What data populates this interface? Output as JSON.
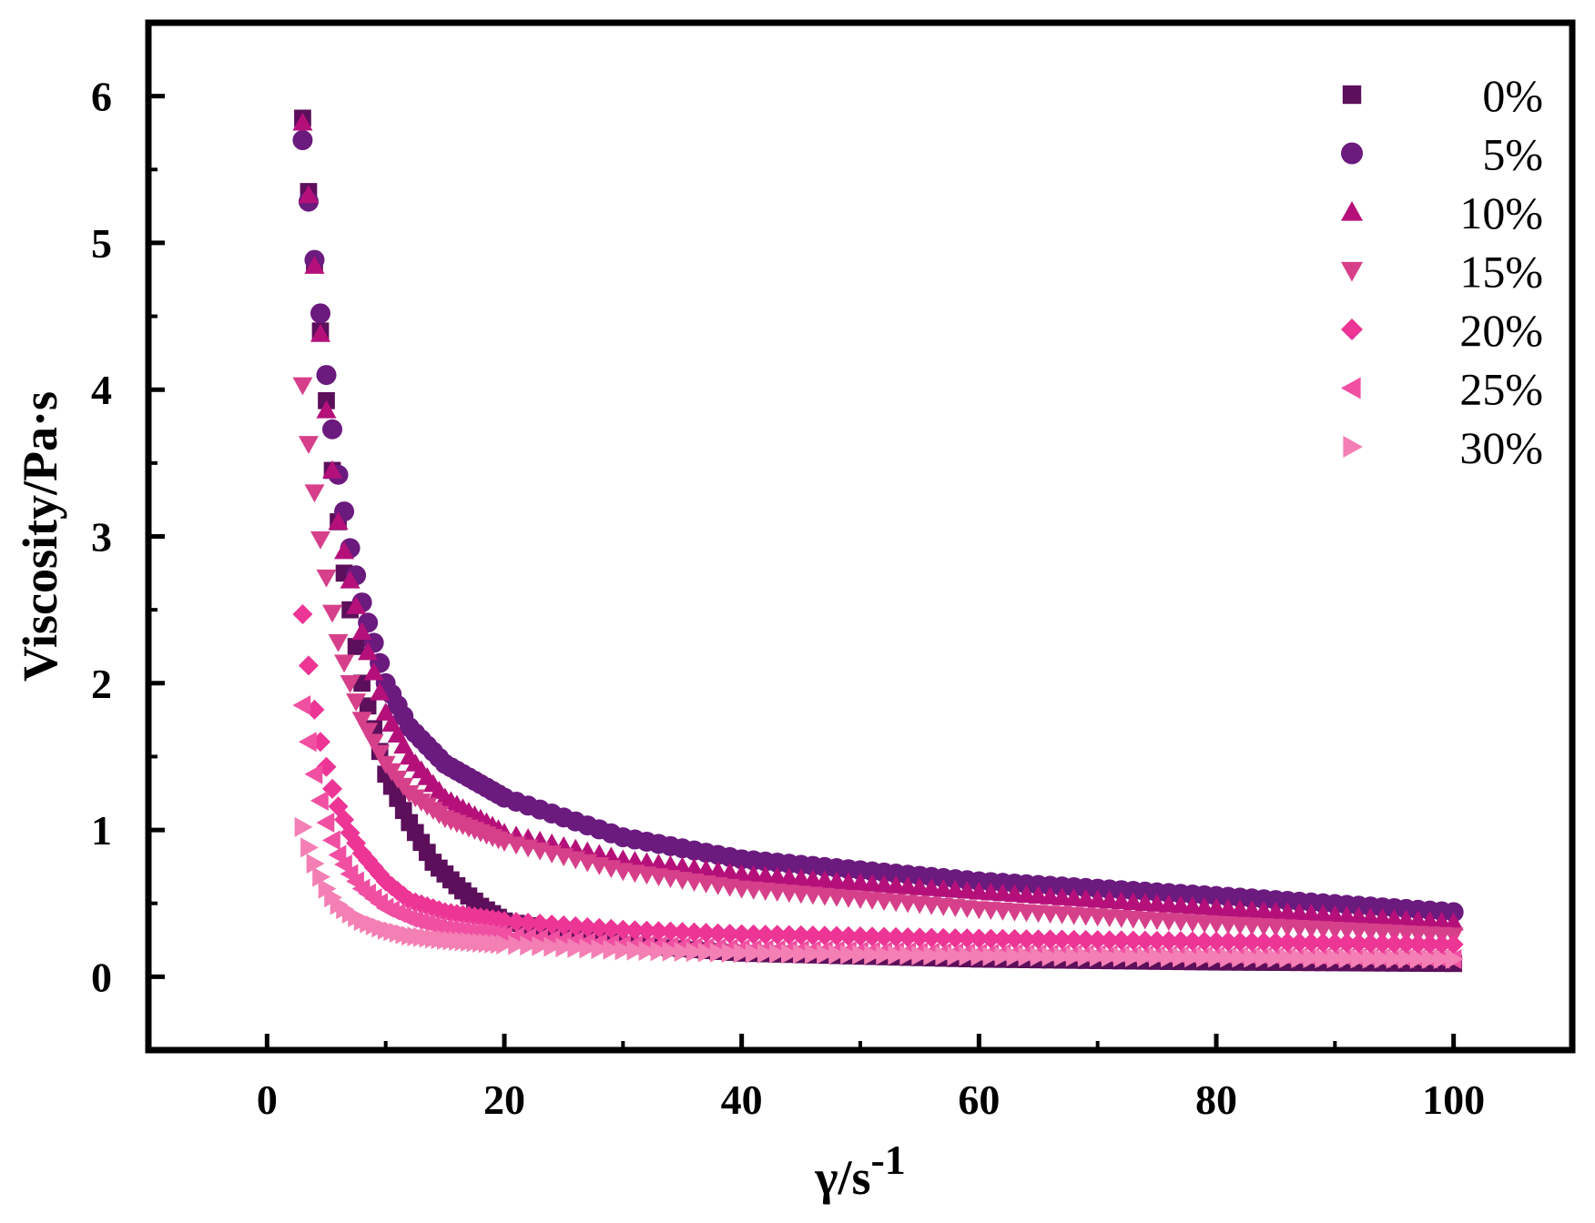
{
  "chart_data": {
    "type": "scatter",
    "xlabel": "γ/s",
    "xlabel_superscript": "-1",
    "ylabel": "Viscosity/Pa·s",
    "xlim": [
      -10,
      110
    ],
    "ylim": [
      -0.5,
      6.5
    ],
    "xticks": [
      0,
      20,
      40,
      60,
      80,
      100
    ],
    "yticks": [
      0,
      1,
      2,
      3,
      4,
      5,
      6
    ],
    "xtick_labels": [
      "0",
      "20",
      "40",
      "60",
      "80",
      "100"
    ],
    "ytick_labels": [
      "0",
      "1",
      "2",
      "3",
      "4",
      "5",
      "6"
    ],
    "grid": false,
    "legend_position": "top-right",
    "series": [
      {
        "name": "0%",
        "marker": "square",
        "color": "#5c0f5a",
        "x": [
          3,
          3.8,
          4.5,
          5.5,
          6.5,
          8,
          10,
          12,
          14,
          16,
          18,
          20,
          30,
          40,
          60,
          80,
          100
        ],
        "y": [
          5.85,
          5.05,
          4.4,
          3.45,
          2.75,
          2.0,
          1.38,
          1.05,
          0.78,
          0.62,
          0.48,
          0.38,
          0.22,
          0.16,
          0.12,
          0.1,
          0.09
        ]
      },
      {
        "name": "5%",
        "marker": "circle",
        "color": "#6b1a7e",
        "x": [
          3,
          3.8,
          4.5,
          5,
          5.5,
          6,
          7,
          8,
          10,
          12,
          15,
          20,
          30,
          40,
          60,
          80,
          100
        ],
        "y": [
          5.7,
          5.03,
          4.52,
          4.1,
          3.73,
          3.42,
          2.92,
          2.55,
          2.0,
          1.7,
          1.45,
          1.22,
          0.95,
          0.8,
          0.65,
          0.55,
          0.44
        ]
      },
      {
        "name": "10%",
        "marker": "triangle-up",
        "color": "#b5107a",
        "x": [
          3,
          3.8,
          4.5,
          5,
          5.5,
          6,
          7,
          8,
          10,
          12,
          15,
          20,
          30,
          40,
          60,
          80,
          100
        ],
        "y": [
          5.82,
          5.03,
          4.38,
          3.86,
          3.45,
          3.1,
          2.7,
          2.35,
          1.8,
          1.5,
          1.22,
          0.98,
          0.8,
          0.7,
          0.58,
          0.47,
          0.37
        ]
      },
      {
        "name": "15%",
        "marker": "triangle-down",
        "color": "#d6408a",
        "x": [
          3,
          3.5,
          4,
          4.5,
          5,
          5.5,
          6,
          7,
          8,
          10,
          12,
          15,
          20,
          30,
          40,
          60,
          80,
          100
        ],
        "y": [
          4.03,
          3.63,
          3.3,
          2.98,
          2.72,
          2.48,
          2.28,
          2.0,
          1.75,
          1.45,
          1.25,
          1.08,
          0.92,
          0.72,
          0.6,
          0.46,
          0.36,
          0.28
        ]
      },
      {
        "name": "20%",
        "marker": "diamond",
        "color": "#ec3595",
        "x": [
          3,
          3.5,
          4,
          4.5,
          5,
          5.5,
          6,
          7,
          8,
          10,
          12,
          15,
          20,
          30,
          40,
          60,
          80,
          100
        ],
        "y": [
          2.47,
          2.12,
          1.82,
          1.6,
          1.43,
          1.28,
          1.16,
          0.98,
          0.84,
          0.65,
          0.52,
          0.44,
          0.38,
          0.32,
          0.29,
          0.26,
          0.24,
          0.22
        ]
      },
      {
        "name": "25%",
        "marker": "triangle-left",
        "color": "#f04fa2",
        "x": [
          3,
          3.5,
          4,
          4.5,
          5,
          5.5,
          6,
          7,
          8,
          10,
          12,
          15,
          20,
          30,
          40,
          60,
          80,
          100
        ],
        "y": [
          1.85,
          1.6,
          1.38,
          1.2,
          1.05,
          0.93,
          0.83,
          0.7,
          0.6,
          0.47,
          0.4,
          0.33,
          0.28,
          0.22,
          0.19,
          0.16,
          0.14,
          0.12
        ]
      },
      {
        "name": "30%",
        "marker": "triangle-right",
        "color": "#f47fb4",
        "x": [
          3,
          3.5,
          4,
          4.5,
          5,
          5.5,
          6,
          7,
          8,
          10,
          12,
          15,
          20,
          30,
          40,
          60,
          80,
          100
        ],
        "y": [
          1.02,
          0.88,
          0.77,
          0.68,
          0.6,
          0.54,
          0.49,
          0.43,
          0.38,
          0.32,
          0.28,
          0.25,
          0.22,
          0.18,
          0.16,
          0.14,
          0.13,
          0.12
        ]
      }
    ]
  }
}
